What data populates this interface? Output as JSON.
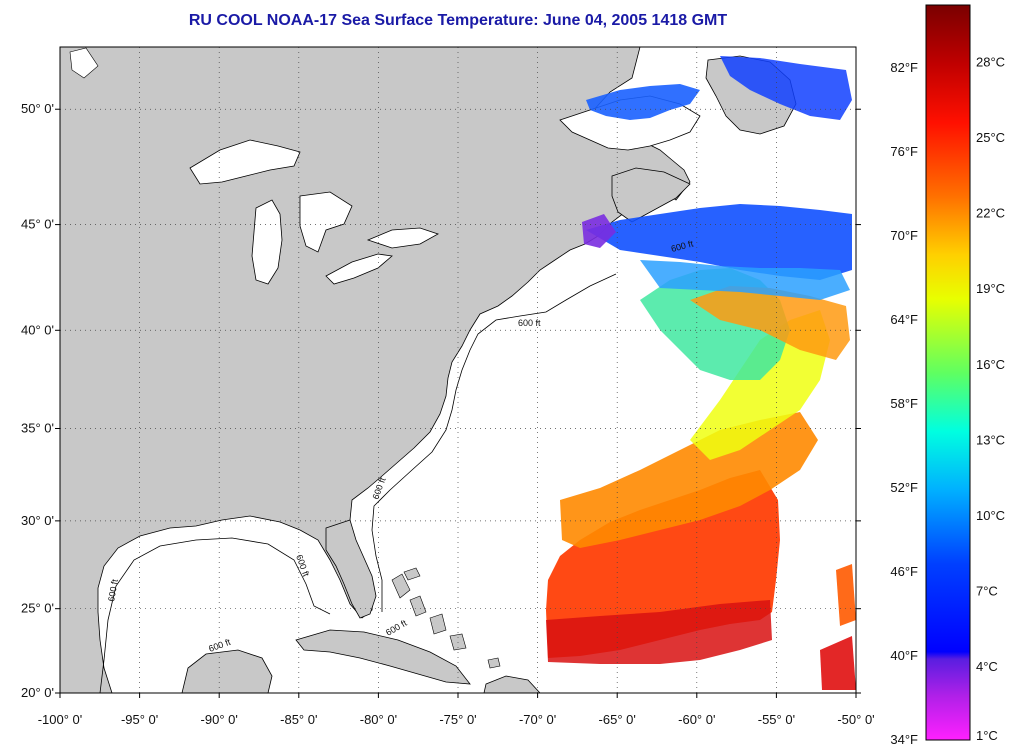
{
  "title": "RU COOL  NOAA-17  Sea Surface Temperature:  June 04, 2005 1418 GMT",
  "map": {
    "lon_range": [
      -100,
      -50
    ],
    "lat_range": [
      20,
      52.5
    ],
    "lon_labels": [
      "-100° 0'",
      "-95° 0'",
      "-90° 0'",
      "-85° 0'",
      "-80° 0'",
      "-75° 0'",
      "-70° 0'",
      "-65° 0'",
      "-60° 0'",
      "-55° 0'",
      "-50° 0'"
    ],
    "lat_labels": [
      "20° 0'",
      "25° 0'",
      "30° 0'",
      "35° 0'",
      "40° 0'",
      "45° 0'",
      "50° 0'"
    ],
    "contour_labels": [
      "600 ft",
      "600 ft",
      "600 ft",
      "600 ft",
      "600 ft",
      "600 ft",
      "600 ft"
    ],
    "land_color": "#c8c8c8",
    "ocean_color": "#ffffff",
    "grid": true
  },
  "colorbar": {
    "fahrenheit_labels": [
      "82°F",
      "76°F",
      "70°F",
      "64°F",
      "58°F",
      "52°F",
      "46°F",
      "40°F",
      "34°F"
    ],
    "celsius_labels": [
      "28°C",
      "25°C",
      "22°C",
      "19°C",
      "16°C",
      "13°C",
      "10°C",
      "7°C",
      "4°C",
      "1°C"
    ],
    "colors_top_to_bottom": [
      "#7a0000",
      "#d00000",
      "#ff2000",
      "#ff7a00",
      "#ffd200",
      "#e6ff00",
      "#7aff50",
      "#00ffd0",
      "#00b4ff",
      "#0050ff",
      "#0000ff",
      "#8a2be2",
      "#ff1aff"
    ]
  }
}
